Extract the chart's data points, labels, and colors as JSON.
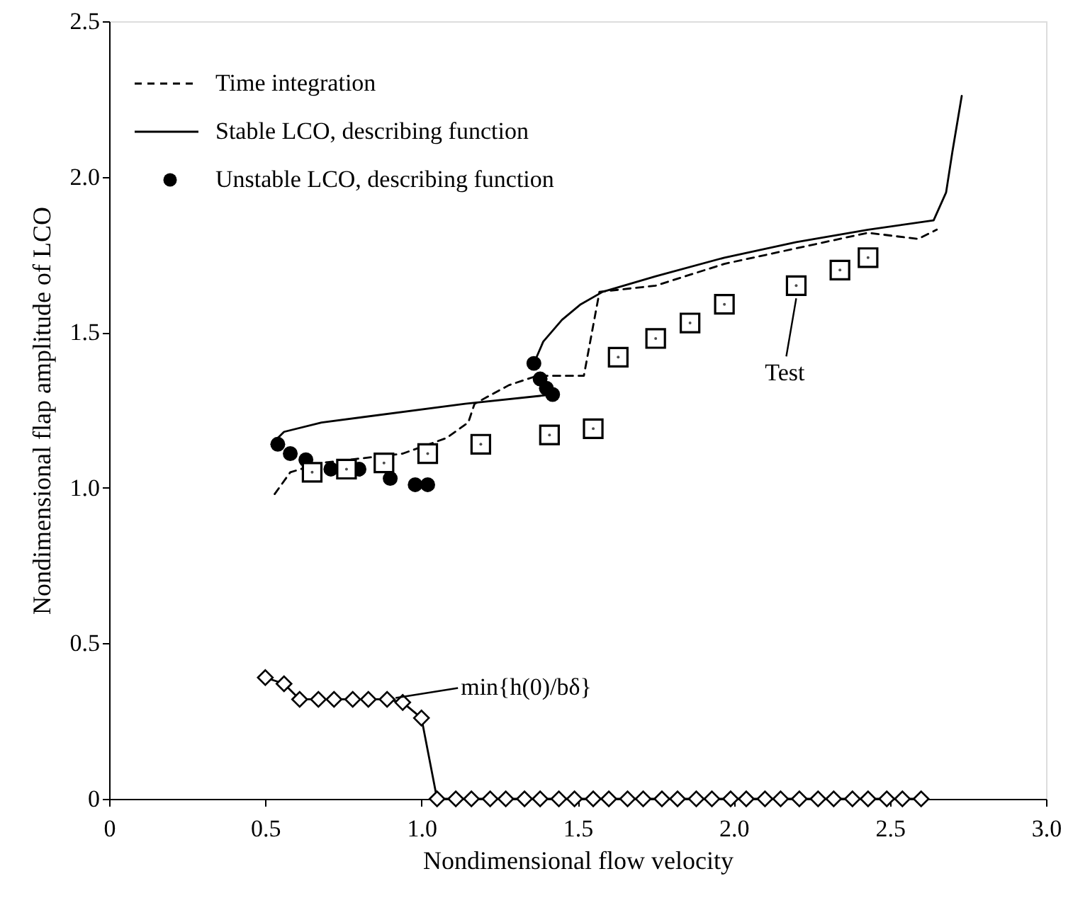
{
  "chart_data": {
    "type": "line",
    "xlabel": "Nondimensional flow velocity",
    "ylabel": "Nondimensional flap amplitude of LCO",
    "xlim": [
      0,
      3
    ],
    "ylim": [
      0,
      2.5
    ],
    "xticks": [
      0,
      0.5,
      {
        "value": 1,
        "label": "1.0"
      },
      1.5,
      {
        "value": 2,
        "label": "2.0"
      },
      2.5,
      {
        "value": 3,
        "label": "3.0"
      }
    ],
    "yticks": [
      0,
      0.5,
      {
        "value": 1,
        "label": "1.0"
      },
      1.5,
      {
        "value": 2,
        "label": "2.0"
      },
      2.5
    ],
    "grid": false,
    "legend": "top left",
    "series": [
      {
        "name": "Time integration",
        "line_style": "dashed",
        "marker": "none",
        "color": "#000000",
        "x": [
          0.53,
          0.58,
          0.68,
          0.94,
          1.08,
          1.15,
          1.17,
          1.28,
          1.37,
          1.52,
          1.57,
          1.75,
          1.97,
          2.2,
          2.43,
          2.51,
          2.59,
          2.65
        ],
        "values": [
          0.98,
          1.05,
          1.08,
          1.11,
          1.16,
          1.21,
          1.27,
          1.33,
          1.36,
          1.36,
          1.63,
          1.65,
          1.72,
          1.77,
          1.82,
          1.81,
          1.8,
          1.83
        ]
      },
      {
        "name": "Stable LCO, describing function",
        "line_style": "solid",
        "marker": "none",
        "color": "#000000",
        "x": [
          0.52,
          0.56,
          0.68,
          1.14,
          1.42,
          1.4,
          1.36,
          1.39,
          1.45,
          1.51,
          1.58,
          1.75,
          1.97,
          2.2,
          2.43,
          2.64,
          2.68,
          2.7,
          2.73
        ],
        "values": [
          1.14,
          1.18,
          1.21,
          1.27,
          1.3,
          null,
          1.4,
          1.47,
          1.54,
          1.59,
          1.63,
          1.68,
          1.74,
          1.79,
          1.83,
          1.86,
          1.95,
          2.08,
          2.26
        ]
      },
      {
        "name": "Unstable LCO, describing function",
        "type": "scatter",
        "marker": "circle",
        "color": "#000000",
        "x": [
          0.54,
          0.58,
          0.63,
          0.71,
          0.8,
          0.9,
          0.98,
          1.02,
          1.36,
          1.38,
          1.4,
          1.42
        ],
        "values": [
          1.14,
          1.11,
          1.09,
          1.06,
          1.06,
          1.03,
          1.01,
          1.01,
          1.4,
          1.35,
          1.32,
          1.3
        ]
      },
      {
        "type": "scatter",
        "marker": "square",
        "color": "#000000",
        "x": [
          0.65,
          0.76,
          0.88,
          1.02,
          1.19,
          1.41,
          1.55,
          1.63,
          1.75,
          1.86,
          1.97,
          2.2,
          2.34,
          2.43
        ],
        "values": [
          1.05,
          1.06,
          1.08,
          1.11,
          1.14,
          1.17,
          1.19,
          1.42,
          1.48,
          1.53,
          1.59,
          1.65,
          1.7,
          1.74
        ]
      },
      {
        "line_style": "solid",
        "marker": "diamond",
        "color": "#000000",
        "x": [
          0.5,
          0.56,
          0.61,
          0.67,
          0.72,
          0.78,
          0.83,
          0.89,
          0.94,
          1.0,
          1.05,
          1.11,
          1.16,
          1.22,
          1.27,
          1.33,
          1.38,
          1.44,
          1.49,
          1.55,
          1.6,
          1.66,
          1.71,
          1.77,
          1.82,
          1.88,
          1.93,
          1.99,
          2.04,
          2.1,
          2.15,
          2.21,
          2.27,
          2.32,
          2.38,
          2.43,
          2.49,
          2.54,
          2.6
        ],
        "values": [
          0.39,
          0.37,
          0.32,
          0.32,
          0.32,
          0.32,
          0.32,
          0.32,
          0.31,
          0.26,
          0,
          0,
          0,
          0,
          0,
          0,
          0,
          0,
          0,
          0,
          0,
          0,
          0,
          0,
          0,
          0,
          0,
          0,
          0,
          0,
          0,
          0,
          0,
          0,
          0,
          0,
          0,
          0,
          0
        ]
      }
    ],
    "annotations": [
      {
        "text": "min{h(0)/bδ}",
        "x": 0.89,
        "y": 0.32
      },
      {
        "text": "Test",
        "x": 2.2,
        "y": 1.65
      }
    ]
  }
}
